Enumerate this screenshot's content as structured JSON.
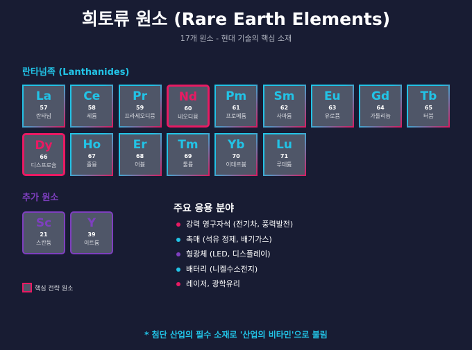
{
  "title": "희토류 원소 (Rare Earth Elements)",
  "subtitle": "17개 원소 - 현대 기술의 핵심 소재",
  "lanthanides_heading": "란타넘족 (Lanthanides)",
  "extra_heading": "추가 원소",
  "colors": {
    "cyan": "#22c3e6",
    "pink": "#e81a63",
    "purple": "#7e3fbf",
    "background": "#181c33"
  },
  "lanthanides": [
    {
      "symbol": "La",
      "number": "57",
      "name": "란타넘",
      "key": false
    },
    {
      "symbol": "Ce",
      "number": "58",
      "name": "세륨",
      "key": false
    },
    {
      "symbol": "Pr",
      "number": "59",
      "name": "프라세오디뮴",
      "key": false
    },
    {
      "symbol": "Nd",
      "number": "60",
      "name": "네오디뮴",
      "key": true
    },
    {
      "symbol": "Pm",
      "number": "61",
      "name": "프로메튬",
      "key": false
    },
    {
      "symbol": "Sm",
      "number": "62",
      "name": "사마륨",
      "key": false
    },
    {
      "symbol": "Eu",
      "number": "63",
      "name": "유로퓸",
      "key": false
    },
    {
      "symbol": "Gd",
      "number": "64",
      "name": "가돌리늄",
      "key": false
    },
    {
      "symbol": "Tb",
      "number": "65",
      "name": "터븀",
      "key": false
    },
    {
      "symbol": "Dy",
      "number": "66",
      "name": "디스프로슘",
      "key": true
    },
    {
      "symbol": "Ho",
      "number": "67",
      "name": "홀뮴",
      "key": false
    },
    {
      "symbol": "Er",
      "number": "68",
      "name": "어븀",
      "key": false
    },
    {
      "symbol": "Tm",
      "number": "69",
      "name": "툴륨",
      "key": false
    },
    {
      "symbol": "Yb",
      "number": "70",
      "name": "이테르븀",
      "key": false
    },
    {
      "symbol": "Lu",
      "number": "71",
      "name": "루테튬",
      "key": false
    }
  ],
  "extra": [
    {
      "symbol": "Sc",
      "number": "21",
      "name": "스칸듐"
    },
    {
      "symbol": "Y",
      "number": "39",
      "name": "이트륨"
    }
  ],
  "legend": "핵심 전략 원소",
  "applications": {
    "heading": "주요 응용 분야",
    "items": [
      {
        "text": "강력 영구자석 (전기차, 풍력발전)",
        "color": "#e81a63"
      },
      {
        "text": "촉매 (석유 정제, 배기가스)",
        "color": "#22c3e6"
      },
      {
        "text": "형광체 (LED, 디스플레이)",
        "color": "#7e3fbf"
      },
      {
        "text": "배터리 (니켈수소전지)",
        "color": "#22c3e6"
      },
      {
        "text": "레이저, 광학유리",
        "color": "#e81a63"
      }
    ]
  },
  "footer": "* 첨단 산업의 필수 소재로 '산업의 비타민'으로 불림"
}
